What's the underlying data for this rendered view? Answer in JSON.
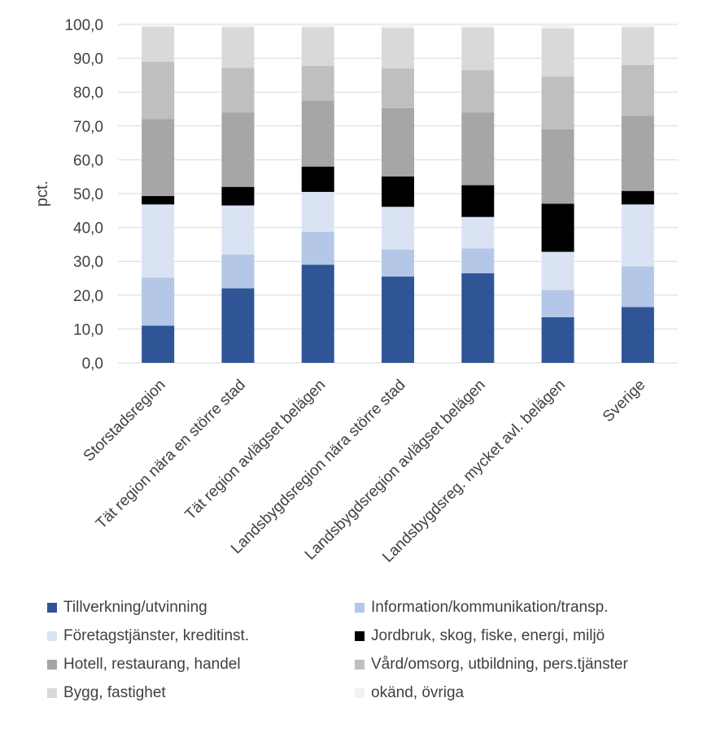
{
  "chart_data": {
    "type": "bar",
    "stacked": true,
    "ylabel": "pct.",
    "ylim": [
      0,
      100
    ],
    "yticks": [
      "0,0",
      "10,0",
      "20,0",
      "30,0",
      "40,0",
      "50,0",
      "60,0",
      "70,0",
      "80,0",
      "90,0",
      "100,0"
    ],
    "grid": true,
    "legend_position": "bottom",
    "categories": [
      "Storstadsregion",
      "Tät region nära en större stad",
      "Tät region avlägset belägen",
      "Landsbygdsregion nära större stad",
      "Landsbygdsregion avlägset belägen",
      "Landsbygdsreg. mycket avl. belägen",
      "Sverige"
    ],
    "series": [
      {
        "name": "Tillverkning/utvinning",
        "color": "#2f5597",
        "values": [
          11.0,
          22.0,
          29.0,
          25.5,
          26.5,
          13.5,
          16.5
        ]
      },
      {
        "name": "Information/kommunikation/transp.",
        "color": "#b4c7e7",
        "values": [
          14.2,
          10.0,
          9.7,
          8.0,
          7.3,
          8.0,
          12.0
        ]
      },
      {
        "name": "Företagstjänster, kreditinst.",
        "color": "#dae3f3",
        "values": [
          21.6,
          14.5,
          11.8,
          12.6,
          9.3,
          11.3,
          18.3
        ]
      },
      {
        "name": "Jordbruk, skog, fiske, energi, miljö",
        "color": "#000000",
        "values": [
          2.5,
          5.5,
          7.5,
          9.0,
          9.4,
          14.2,
          4.0
        ]
      },
      {
        "name": "Hotell, restaurang, handel",
        "color": "#a6a6a6",
        "values": [
          22.7,
          22.0,
          19.5,
          20.2,
          21.5,
          22.0,
          22.2
        ]
      },
      {
        "name": "Vård/omsorg, utbildning, pers.tjänster",
        "color": "#bfbfbf",
        "values": [
          17.0,
          13.2,
          10.3,
          11.7,
          12.5,
          15.6,
          15.0
        ]
      },
      {
        "name": "Bygg, fastighet",
        "color": "#d9d9d9",
        "values": [
          10.3,
          12.0,
          11.4,
          12.0,
          12.6,
          14.2,
          11.2
        ]
      },
      {
        "name": "okänd, övriga",
        "color": "#f2f2f2",
        "values": [
          0.7,
          0.8,
          0.8,
          1.0,
          0.9,
          1.2,
          0.8
        ]
      }
    ]
  }
}
